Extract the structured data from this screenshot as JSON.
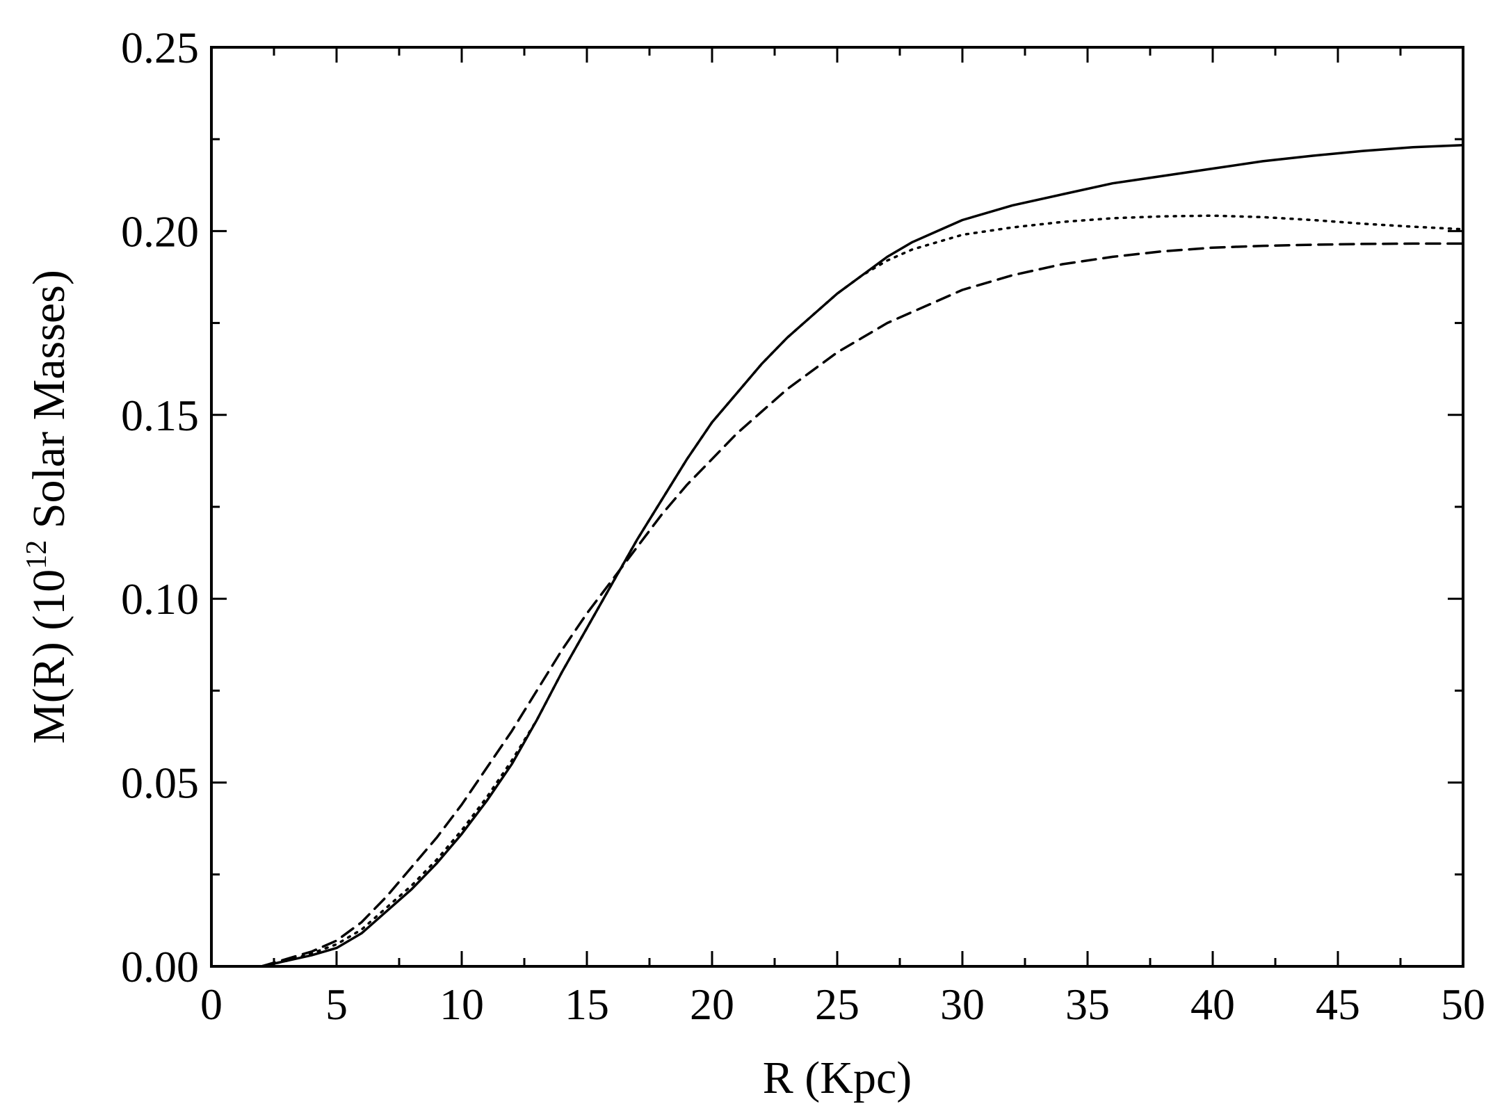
{
  "chart_data": {
    "type": "line",
    "title": "",
    "xlabel": "R (Kpc)",
    "ylabel_parts": {
      "before": "M(R) (10",
      "sup": "12",
      "after": " Solar Masses)"
    },
    "xlim": [
      0,
      50
    ],
    "ylim": [
      0,
      0.25
    ],
    "x_ticks": [
      "0",
      "5",
      "10",
      "15",
      "20",
      "25",
      "30",
      "35",
      "40",
      "45",
      "50"
    ],
    "y_ticks": [
      "0.00",
      "0.05",
      "0.10",
      "0.15",
      "0.20",
      "0.25"
    ],
    "grid": false,
    "legend": false,
    "series": [
      {
        "style": "solid",
        "color": "#000000",
        "points": [
          [
            2,
            0.0
          ],
          [
            3,
            0.0015
          ],
          [
            4,
            0.003
          ],
          [
            5,
            0.005
          ],
          [
            6,
            0.009
          ],
          [
            7,
            0.015
          ],
          [
            8,
            0.021
          ],
          [
            9,
            0.028
          ],
          [
            10,
            0.036
          ],
          [
            11,
            0.045
          ],
          [
            12,
            0.055
          ],
          [
            13,
            0.067
          ],
          [
            14,
            0.08
          ],
          [
            15,
            0.092
          ],
          [
            16,
            0.104
          ],
          [
            17,
            0.116
          ],
          [
            18,
            0.127
          ],
          [
            19,
            0.138
          ],
          [
            20,
            0.148
          ],
          [
            21,
            0.156
          ],
          [
            22,
            0.164
          ],
          [
            23,
            0.171
          ],
          [
            24,
            0.177
          ],
          [
            25,
            0.183
          ],
          [
            26,
            0.188
          ],
          [
            27,
            0.193
          ],
          [
            28,
            0.197
          ],
          [
            29,
            0.2
          ],
          [
            30,
            0.203
          ],
          [
            32,
            0.207
          ],
          [
            34,
            0.21
          ],
          [
            36,
            0.213
          ],
          [
            38,
            0.215
          ],
          [
            40,
            0.217
          ],
          [
            42,
            0.219
          ],
          [
            44,
            0.2205
          ],
          [
            46,
            0.2218
          ],
          [
            48,
            0.2228
          ],
          [
            50,
            0.2234
          ]
        ]
      },
      {
        "style": "dotted",
        "color": "#000000",
        "points": [
          [
            2,
            0.0
          ],
          [
            3,
            0.0015
          ],
          [
            4,
            0.0035
          ],
          [
            5,
            0.006
          ],
          [
            6,
            0.01
          ],
          [
            7,
            0.016
          ],
          [
            8,
            0.022
          ],
          [
            9,
            0.029
          ],
          [
            10,
            0.037
          ],
          [
            11,
            0.046
          ],
          [
            12,
            0.056
          ],
          [
            13,
            0.067
          ],
          [
            14,
            0.08
          ],
          [
            15,
            0.092
          ],
          [
            16,
            0.104
          ],
          [
            17,
            0.116
          ],
          [
            18,
            0.127
          ],
          [
            19,
            0.138
          ],
          [
            20,
            0.148
          ],
          [
            21,
            0.156
          ],
          [
            22,
            0.164
          ],
          [
            23,
            0.171
          ],
          [
            24,
            0.177
          ],
          [
            25,
            0.183
          ],
          [
            26,
            0.188
          ],
          [
            27,
            0.192
          ],
          [
            28,
            0.195
          ],
          [
            29,
            0.197
          ],
          [
            30,
            0.199
          ],
          [
            32,
            0.201
          ],
          [
            34,
            0.2025
          ],
          [
            36,
            0.2035
          ],
          [
            38,
            0.204
          ],
          [
            40,
            0.2042
          ],
          [
            42,
            0.2038
          ],
          [
            44,
            0.203
          ],
          [
            46,
            0.202
          ],
          [
            48,
            0.2012
          ],
          [
            50,
            0.2005
          ]
        ]
      },
      {
        "style": "dashed",
        "color": "#000000",
        "points": [
          [
            2,
            0.0
          ],
          [
            3,
            0.002
          ],
          [
            4,
            0.004
          ],
          [
            5,
            0.007
          ],
          [
            6,
            0.012
          ],
          [
            7,
            0.019
          ],
          [
            8,
            0.027
          ],
          [
            9,
            0.035
          ],
          [
            10,
            0.044
          ],
          [
            11,
            0.054
          ],
          [
            12,
            0.064
          ],
          [
            13,
            0.075
          ],
          [
            14,
            0.086
          ],
          [
            15,
            0.096
          ],
          [
            16,
            0.105
          ],
          [
            17,
            0.114
          ],
          [
            18,
            0.123
          ],
          [
            19,
            0.131
          ],
          [
            20,
            0.138
          ],
          [
            21,
            0.145
          ],
          [
            22,
            0.151
          ],
          [
            23,
            0.157
          ],
          [
            24,
            0.162
          ],
          [
            25,
            0.167
          ],
          [
            26,
            0.171
          ],
          [
            27,
            0.175
          ],
          [
            28,
            0.178
          ],
          [
            29,
            0.181
          ],
          [
            30,
            0.184
          ],
          [
            32,
            0.188
          ],
          [
            34,
            0.191
          ],
          [
            36,
            0.193
          ],
          [
            38,
            0.1945
          ],
          [
            40,
            0.1955
          ],
          [
            42,
            0.196
          ],
          [
            44,
            0.1963
          ],
          [
            46,
            0.1965
          ],
          [
            48,
            0.1966
          ],
          [
            50,
            0.1966
          ]
        ]
      }
    ]
  }
}
